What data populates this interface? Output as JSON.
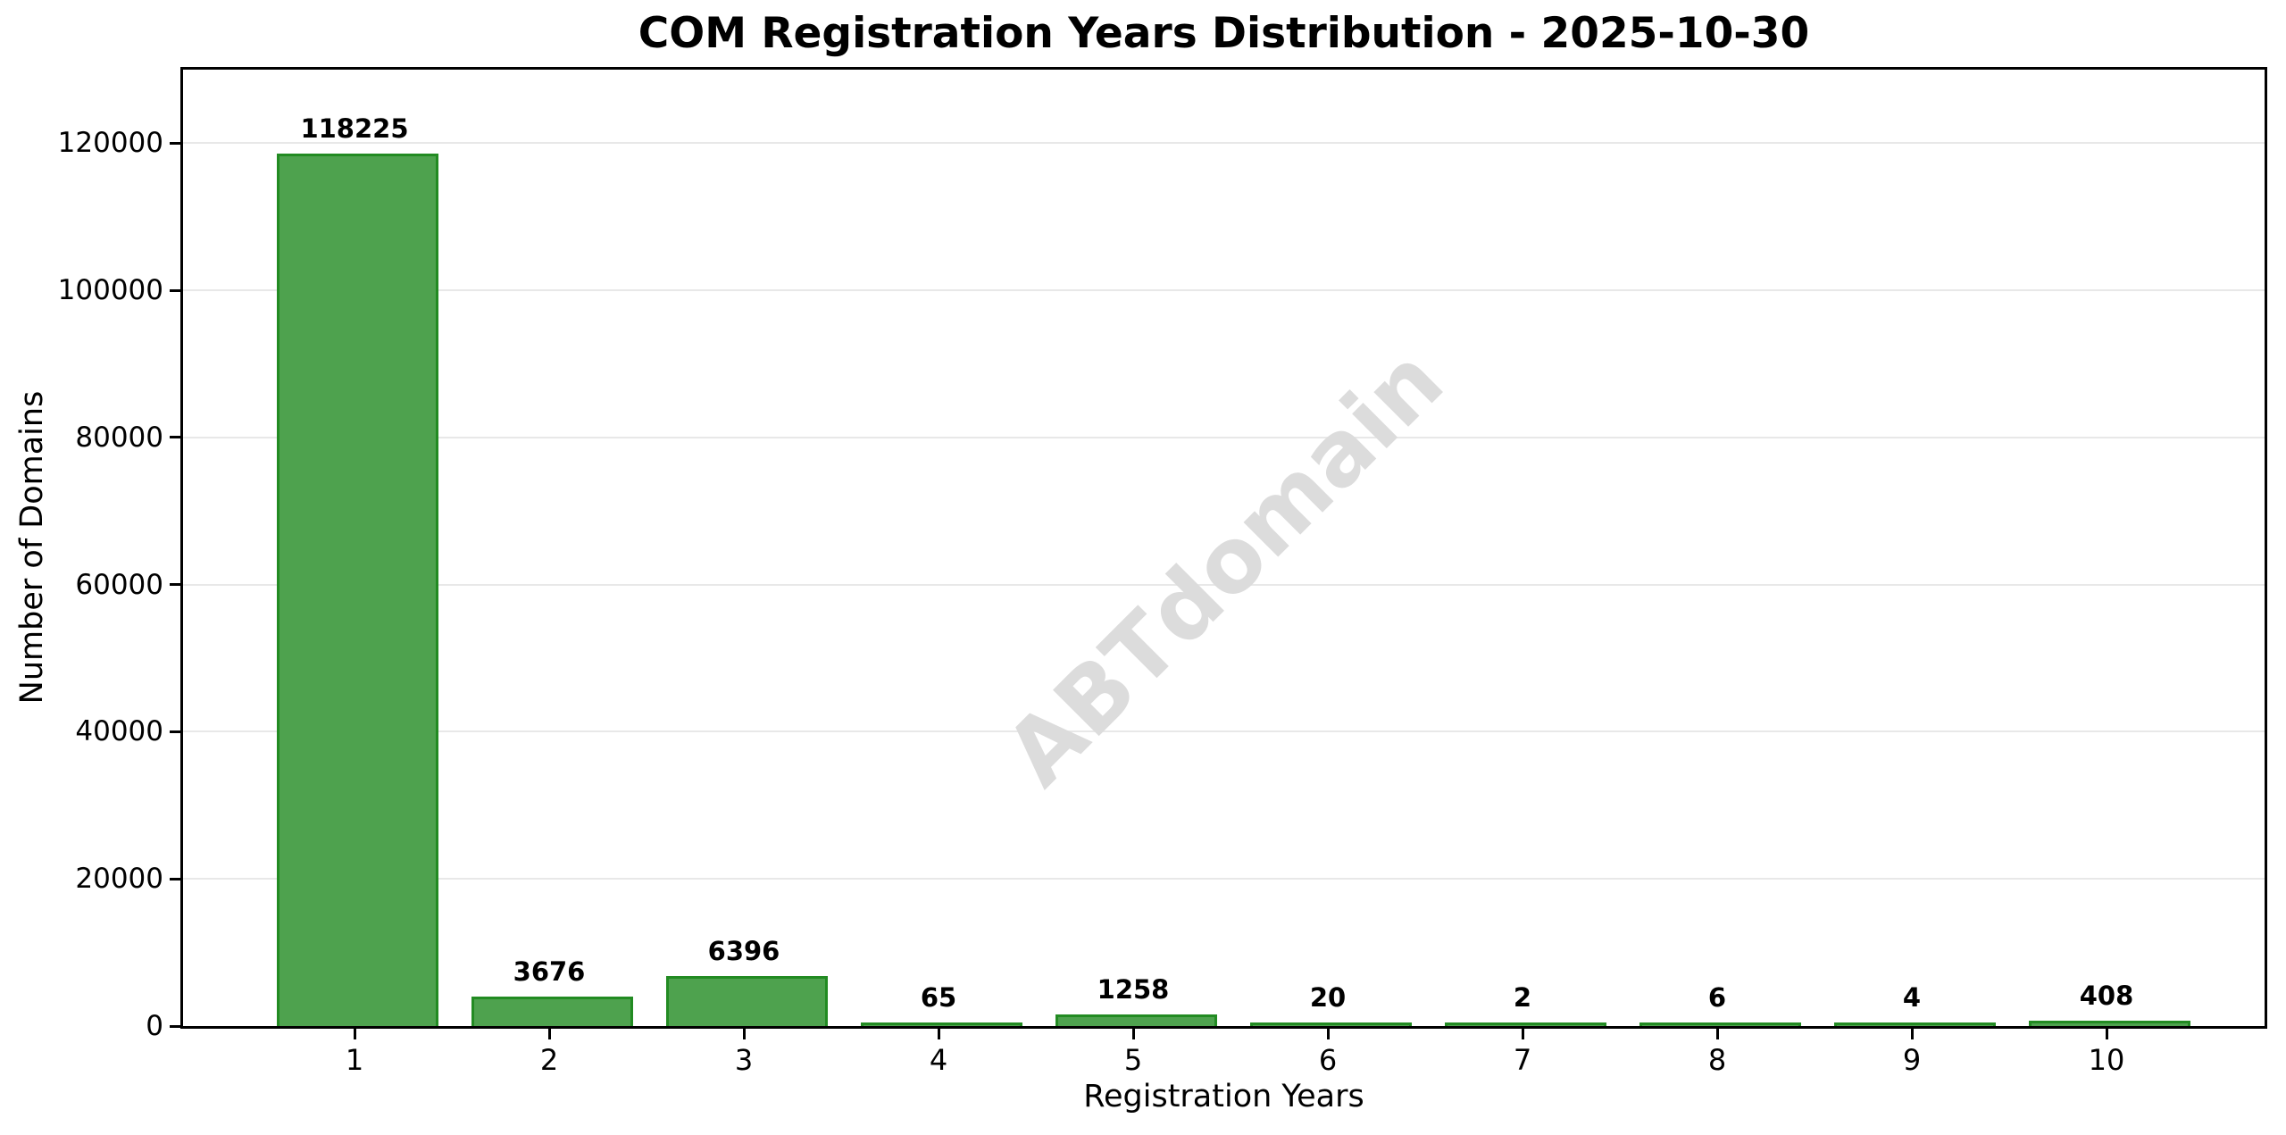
{
  "chart_data": {
    "type": "bar",
    "title": "COM Registration Years Distribution - 2025-10-30",
    "xlabel": "Registration Years",
    "ylabel": "Number of Domains",
    "categories": [
      "1",
      "2",
      "3",
      "4",
      "5",
      "6",
      "7",
      "8",
      "9",
      "10"
    ],
    "values": [
      118225,
      3676,
      6396,
      65,
      1258,
      20,
      2,
      6,
      4,
      408
    ],
    "value_labels": [
      "118225",
      "3676",
      "6396",
      "65",
      "1258",
      "20",
      "2",
      "6",
      "4",
      "408"
    ],
    "yticks": [
      0,
      20000,
      40000,
      60000,
      80000,
      100000,
      120000
    ],
    "ytick_labels": [
      "0",
      "20000",
      "40000",
      "60000",
      "80000",
      "100000",
      "120000"
    ],
    "ylim": [
      0,
      130000
    ],
    "grid": "horizontal",
    "legend_position": "none",
    "watermark": "ABTdomain",
    "colors": {
      "bar_fill": "#4ea24e",
      "bar_edge": "#228b22",
      "gridline": "#e8e8e8",
      "watermark": "#dcdcdc",
      "axis": "#000000",
      "background": "#ffffff"
    }
  }
}
